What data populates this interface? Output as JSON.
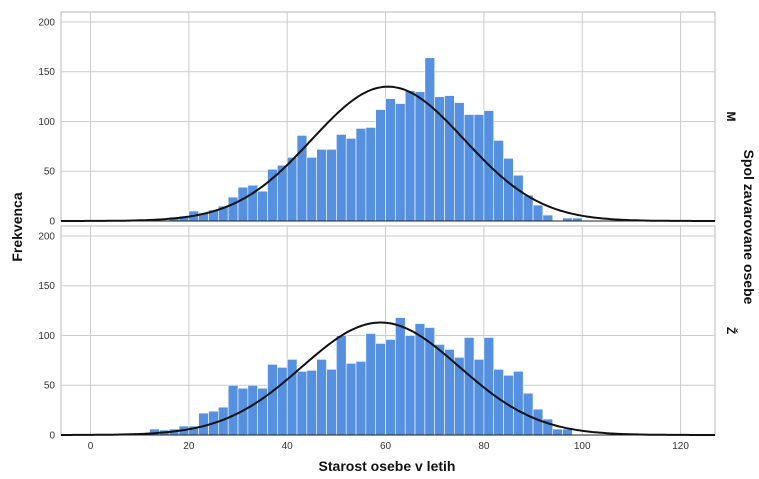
{
  "chart_data": {
    "type": "histogram",
    "xlabel": "Starost osebe v letih",
    "ylabel": "Frekvenca",
    "facet_label": "Spol zavarovane osebe",
    "xlim": [
      -6,
      127
    ],
    "ylim": [
      0,
      210
    ],
    "x_ticks": [
      0,
      20,
      40,
      60,
      80,
      100,
      120
    ],
    "y_ticks": [
      0,
      50,
      100,
      150,
      200
    ],
    "bin_width": 2,
    "grid": true,
    "bar_color": "#5591e0",
    "curve_color": "#111111",
    "panels": [
      {
        "name": "M",
        "normal_curve": {
          "mean": 60.5,
          "sd": 15.5,
          "peak": 135
        },
        "bins": [
          {
            "x": 16,
            "y": 4
          },
          {
            "x": 18,
            "y": 5
          },
          {
            "x": 20,
            "y": 10
          },
          {
            "x": 22,
            "y": 8
          },
          {
            "x": 24,
            "y": 11
          },
          {
            "x": 26,
            "y": 15
          },
          {
            "x": 28,
            "y": 24
          },
          {
            "x": 30,
            "y": 34
          },
          {
            "x": 32,
            "y": 36
          },
          {
            "x": 34,
            "y": 30
          },
          {
            "x": 36,
            "y": 52
          },
          {
            "x": 38,
            "y": 56
          },
          {
            "x": 40,
            "y": 64
          },
          {
            "x": 42,
            "y": 86
          },
          {
            "x": 44,
            "y": 64
          },
          {
            "x": 46,
            "y": 72
          },
          {
            "x": 48,
            "y": 72
          },
          {
            "x": 50,
            "y": 87
          },
          {
            "x": 52,
            "y": 83
          },
          {
            "x": 54,
            "y": 93
          },
          {
            "x": 56,
            "y": 94
          },
          {
            "x": 58,
            "y": 112
          },
          {
            "x": 60,
            "y": 123
          },
          {
            "x": 62,
            "y": 118
          },
          {
            "x": 64,
            "y": 131
          },
          {
            "x": 66,
            "y": 130
          },
          {
            "x": 68,
            "y": 164
          },
          {
            "x": 70,
            "y": 125
          },
          {
            "x": 72,
            "y": 126
          },
          {
            "x": 74,
            "y": 119
          },
          {
            "x": 76,
            "y": 107
          },
          {
            "x": 78,
            "y": 107
          },
          {
            "x": 80,
            "y": 111
          },
          {
            "x": 82,
            "y": 81
          },
          {
            "x": 84,
            "y": 63
          },
          {
            "x": 86,
            "y": 46
          },
          {
            "x": 88,
            "y": 26
          },
          {
            "x": 90,
            "y": 16
          },
          {
            "x": 92,
            "y": 6
          },
          {
            "x": 94,
            "y": 0
          },
          {
            "x": 96,
            "y": 3
          },
          {
            "x": 98,
            "y": 3
          }
        ]
      },
      {
        "name": "Ž",
        "normal_curve": {
          "mean": 59,
          "sd": 16,
          "peak": 113
        },
        "bins": [
          {
            "x": 12,
            "y": 6
          },
          {
            "x": 14,
            "y": 5
          },
          {
            "x": 16,
            "y": 6
          },
          {
            "x": 18,
            "y": 9
          },
          {
            "x": 20,
            "y": 9
          },
          {
            "x": 22,
            "y": 22
          },
          {
            "x": 24,
            "y": 24
          },
          {
            "x": 26,
            "y": 28
          },
          {
            "x": 28,
            "y": 50
          },
          {
            "x": 30,
            "y": 47
          },
          {
            "x": 32,
            "y": 50
          },
          {
            "x": 34,
            "y": 47
          },
          {
            "x": 36,
            "y": 71
          },
          {
            "x": 38,
            "y": 68
          },
          {
            "x": 40,
            "y": 76
          },
          {
            "x": 42,
            "y": 64
          },
          {
            "x": 44,
            "y": 65
          },
          {
            "x": 46,
            "y": 76
          },
          {
            "x": 48,
            "y": 66
          },
          {
            "x": 50,
            "y": 100
          },
          {
            "x": 52,
            "y": 72
          },
          {
            "x": 54,
            "y": 74
          },
          {
            "x": 56,
            "y": 102
          },
          {
            "x": 58,
            "y": 92
          },
          {
            "x": 60,
            "y": 96
          },
          {
            "x": 62,
            "y": 118
          },
          {
            "x": 64,
            "y": 100
          },
          {
            "x": 66,
            "y": 112
          },
          {
            "x": 68,
            "y": 108
          },
          {
            "x": 70,
            "y": 91
          },
          {
            "x": 72,
            "y": 86
          },
          {
            "x": 74,
            "y": 78
          },
          {
            "x": 76,
            "y": 98
          },
          {
            "x": 78,
            "y": 76
          },
          {
            "x": 80,
            "y": 98
          },
          {
            "x": 82,
            "y": 66
          },
          {
            "x": 84,
            "y": 60
          },
          {
            "x": 86,
            "y": 64
          },
          {
            "x": 88,
            "y": 42
          },
          {
            "x": 90,
            "y": 26
          },
          {
            "x": 92,
            "y": 16
          },
          {
            "x": 94,
            "y": 6
          },
          {
            "x": 96,
            "y": 6
          }
        ]
      }
    ]
  }
}
